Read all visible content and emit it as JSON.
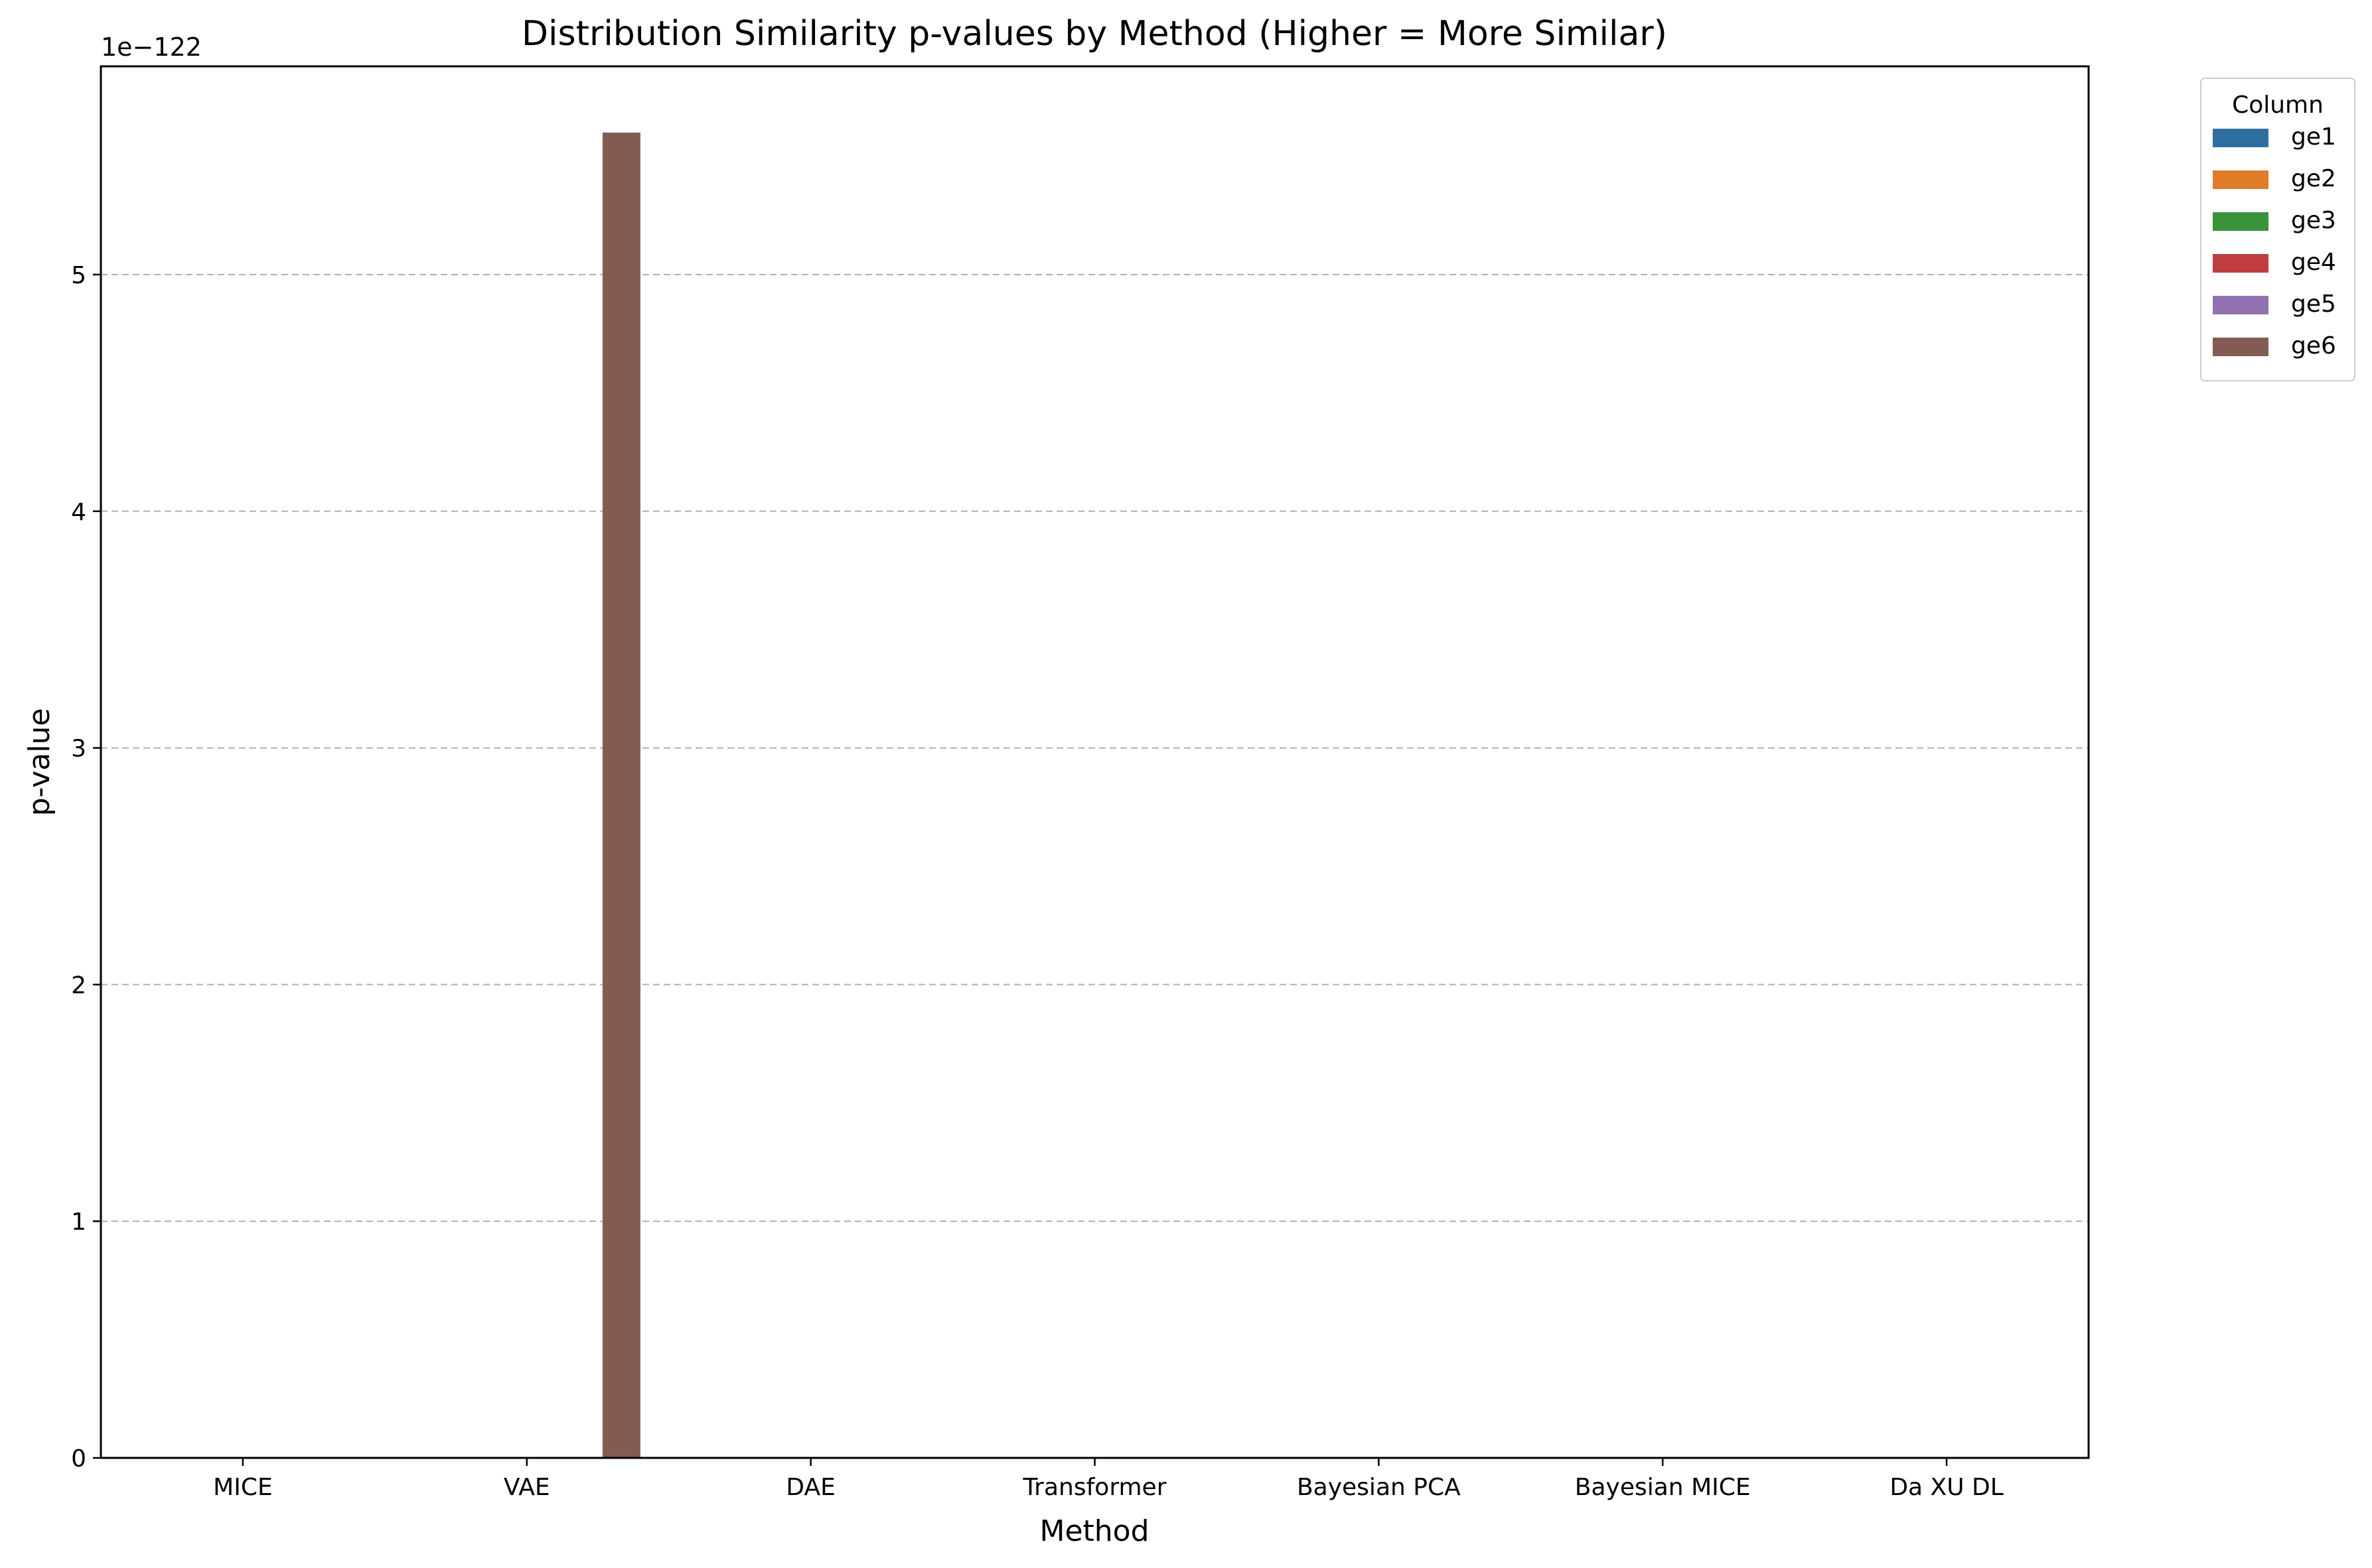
{
  "chart_data": {
    "type": "bar",
    "title": "Distribution Similarity p-values by Method (Higher = More Similar)",
    "xlabel": "Method",
    "ylabel": "p-value",
    "y_offset_label": "1e−122",
    "y_scale_exponent": -122,
    "ylim": [
      0,
      5.88
    ],
    "y_ticks": [
      "0",
      "1",
      "2",
      "3",
      "4",
      "5"
    ],
    "y_tick_values": [
      0,
      1,
      2,
      3,
      4,
      5
    ],
    "grid": "y-dashed",
    "legend": {
      "title": "Column",
      "placement": "outside top-right"
    },
    "categories": [
      "MICE",
      "VAE",
      "DAE",
      "Transformer",
      "Bayesian PCA",
      "Bayesian MICE",
      "Da XU DL"
    ],
    "series": [
      {
        "name": "ge1",
        "color": "#2f6f9f",
        "values": [
          0,
          0,
          0,
          0,
          0,
          0,
          0
        ]
      },
      {
        "name": "ge2",
        "color": "#e07b27",
        "values": [
          0,
          0,
          0,
          0,
          0,
          0,
          0
        ]
      },
      {
        "name": "ge3",
        "color": "#3a923a",
        "values": [
          0,
          0,
          0,
          0,
          0,
          0,
          0
        ]
      },
      {
        "name": "ge4",
        "color": "#c03d3e",
        "values": [
          0,
          0,
          0,
          0,
          0,
          0,
          0
        ]
      },
      {
        "name": "ge5",
        "color": "#9372b2",
        "values": [
          0,
          0,
          0,
          0,
          0,
          0,
          0
        ]
      },
      {
        "name": "ge6",
        "color": "#845b53",
        "values": [
          0,
          5.6,
          0,
          0,
          0,
          0,
          0
        ]
      }
    ]
  }
}
